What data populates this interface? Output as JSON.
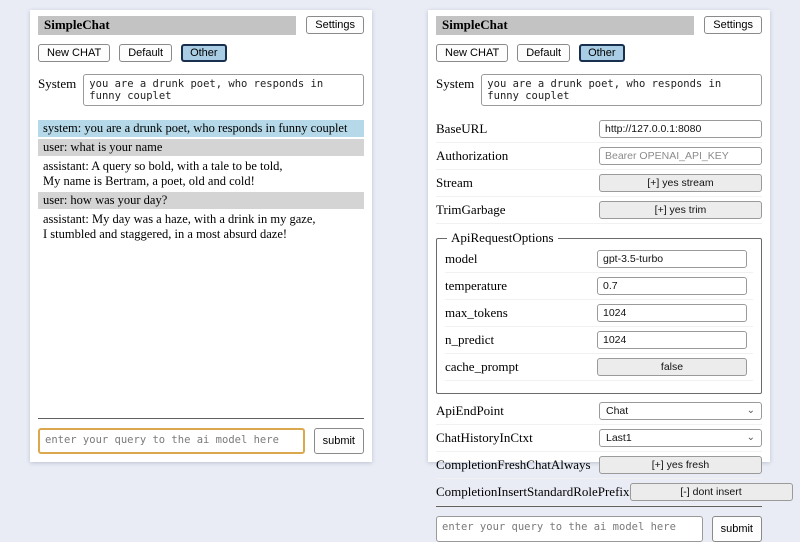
{
  "app": {
    "title": "SimpleChat",
    "settings_label": "Settings"
  },
  "toolbar": {
    "new_chat_label": "New CHAT",
    "sessions": {
      "default_label": "Default",
      "other_label": "Other"
    },
    "active_session": "Other"
  },
  "system_prompt": {
    "label": "System",
    "value": "you are a drunk poet, who responds in funny couplet"
  },
  "chat": {
    "messages": [
      {
        "role": "system",
        "text": "system: you are a drunk poet, who responds in funny couplet"
      },
      {
        "role": "user",
        "text": "user: what is your name"
      },
      {
        "role": "assistant",
        "text": "assistant: A query so bold, with a tale to be told,\nMy name is Bertram, a poet, old and cold!"
      },
      {
        "role": "user",
        "text": "user: how was your day?"
      },
      {
        "role": "assistant",
        "text": "assistant: My day was a haze, with a drink in my gaze,\nI stumbled and staggered, in a most absurd daze!"
      }
    ]
  },
  "settings": {
    "rows_top": [
      {
        "label": "BaseURL",
        "type": "input",
        "value": "http://127.0.0.1:8080"
      },
      {
        "label": "Authorization",
        "type": "input",
        "value": "",
        "placeholder": "Bearer OPENAI_API_KEY"
      },
      {
        "label": "Stream",
        "type": "button",
        "value": "[+] yes stream"
      },
      {
        "label": "TrimGarbage",
        "type": "button",
        "value": "[+] yes trim"
      }
    ],
    "fieldset": {
      "legend": "ApiRequestOptions",
      "rows": [
        {
          "label": "model",
          "type": "input",
          "value": "gpt-3.5-turbo"
        },
        {
          "label": "temperature",
          "type": "input",
          "value": "0.7"
        },
        {
          "label": "max_tokens",
          "type": "input",
          "value": "1024"
        },
        {
          "label": "n_predict",
          "type": "input",
          "value": "1024"
        },
        {
          "label": "cache_prompt",
          "type": "button",
          "value": "false"
        }
      ]
    },
    "rows_bottom": [
      {
        "label": "ApiEndPoint",
        "type": "select",
        "value": "Chat"
      },
      {
        "label": "ChatHistoryInCtxt",
        "type": "select",
        "value": "Last1"
      },
      {
        "label": "CompletionFreshChatAlways",
        "type": "button",
        "value": "[+] yes fresh"
      },
      {
        "label": "CompletionInsertStandardRolePrefix",
        "type": "button",
        "value": "[-] dont insert"
      }
    ]
  },
  "query": {
    "placeholder": "enter your query to the ai model here",
    "submit_label": "submit"
  },
  "colors": {
    "titlebar_bg": "#c3c3c3",
    "active_session_bg": "#a9cde4",
    "system_msg_bg": "#b5d9e8",
    "user_msg_bg": "#d4d4d4",
    "focused_query_border": "#dca84e",
    "page_bg": "#e9ecf5"
  }
}
